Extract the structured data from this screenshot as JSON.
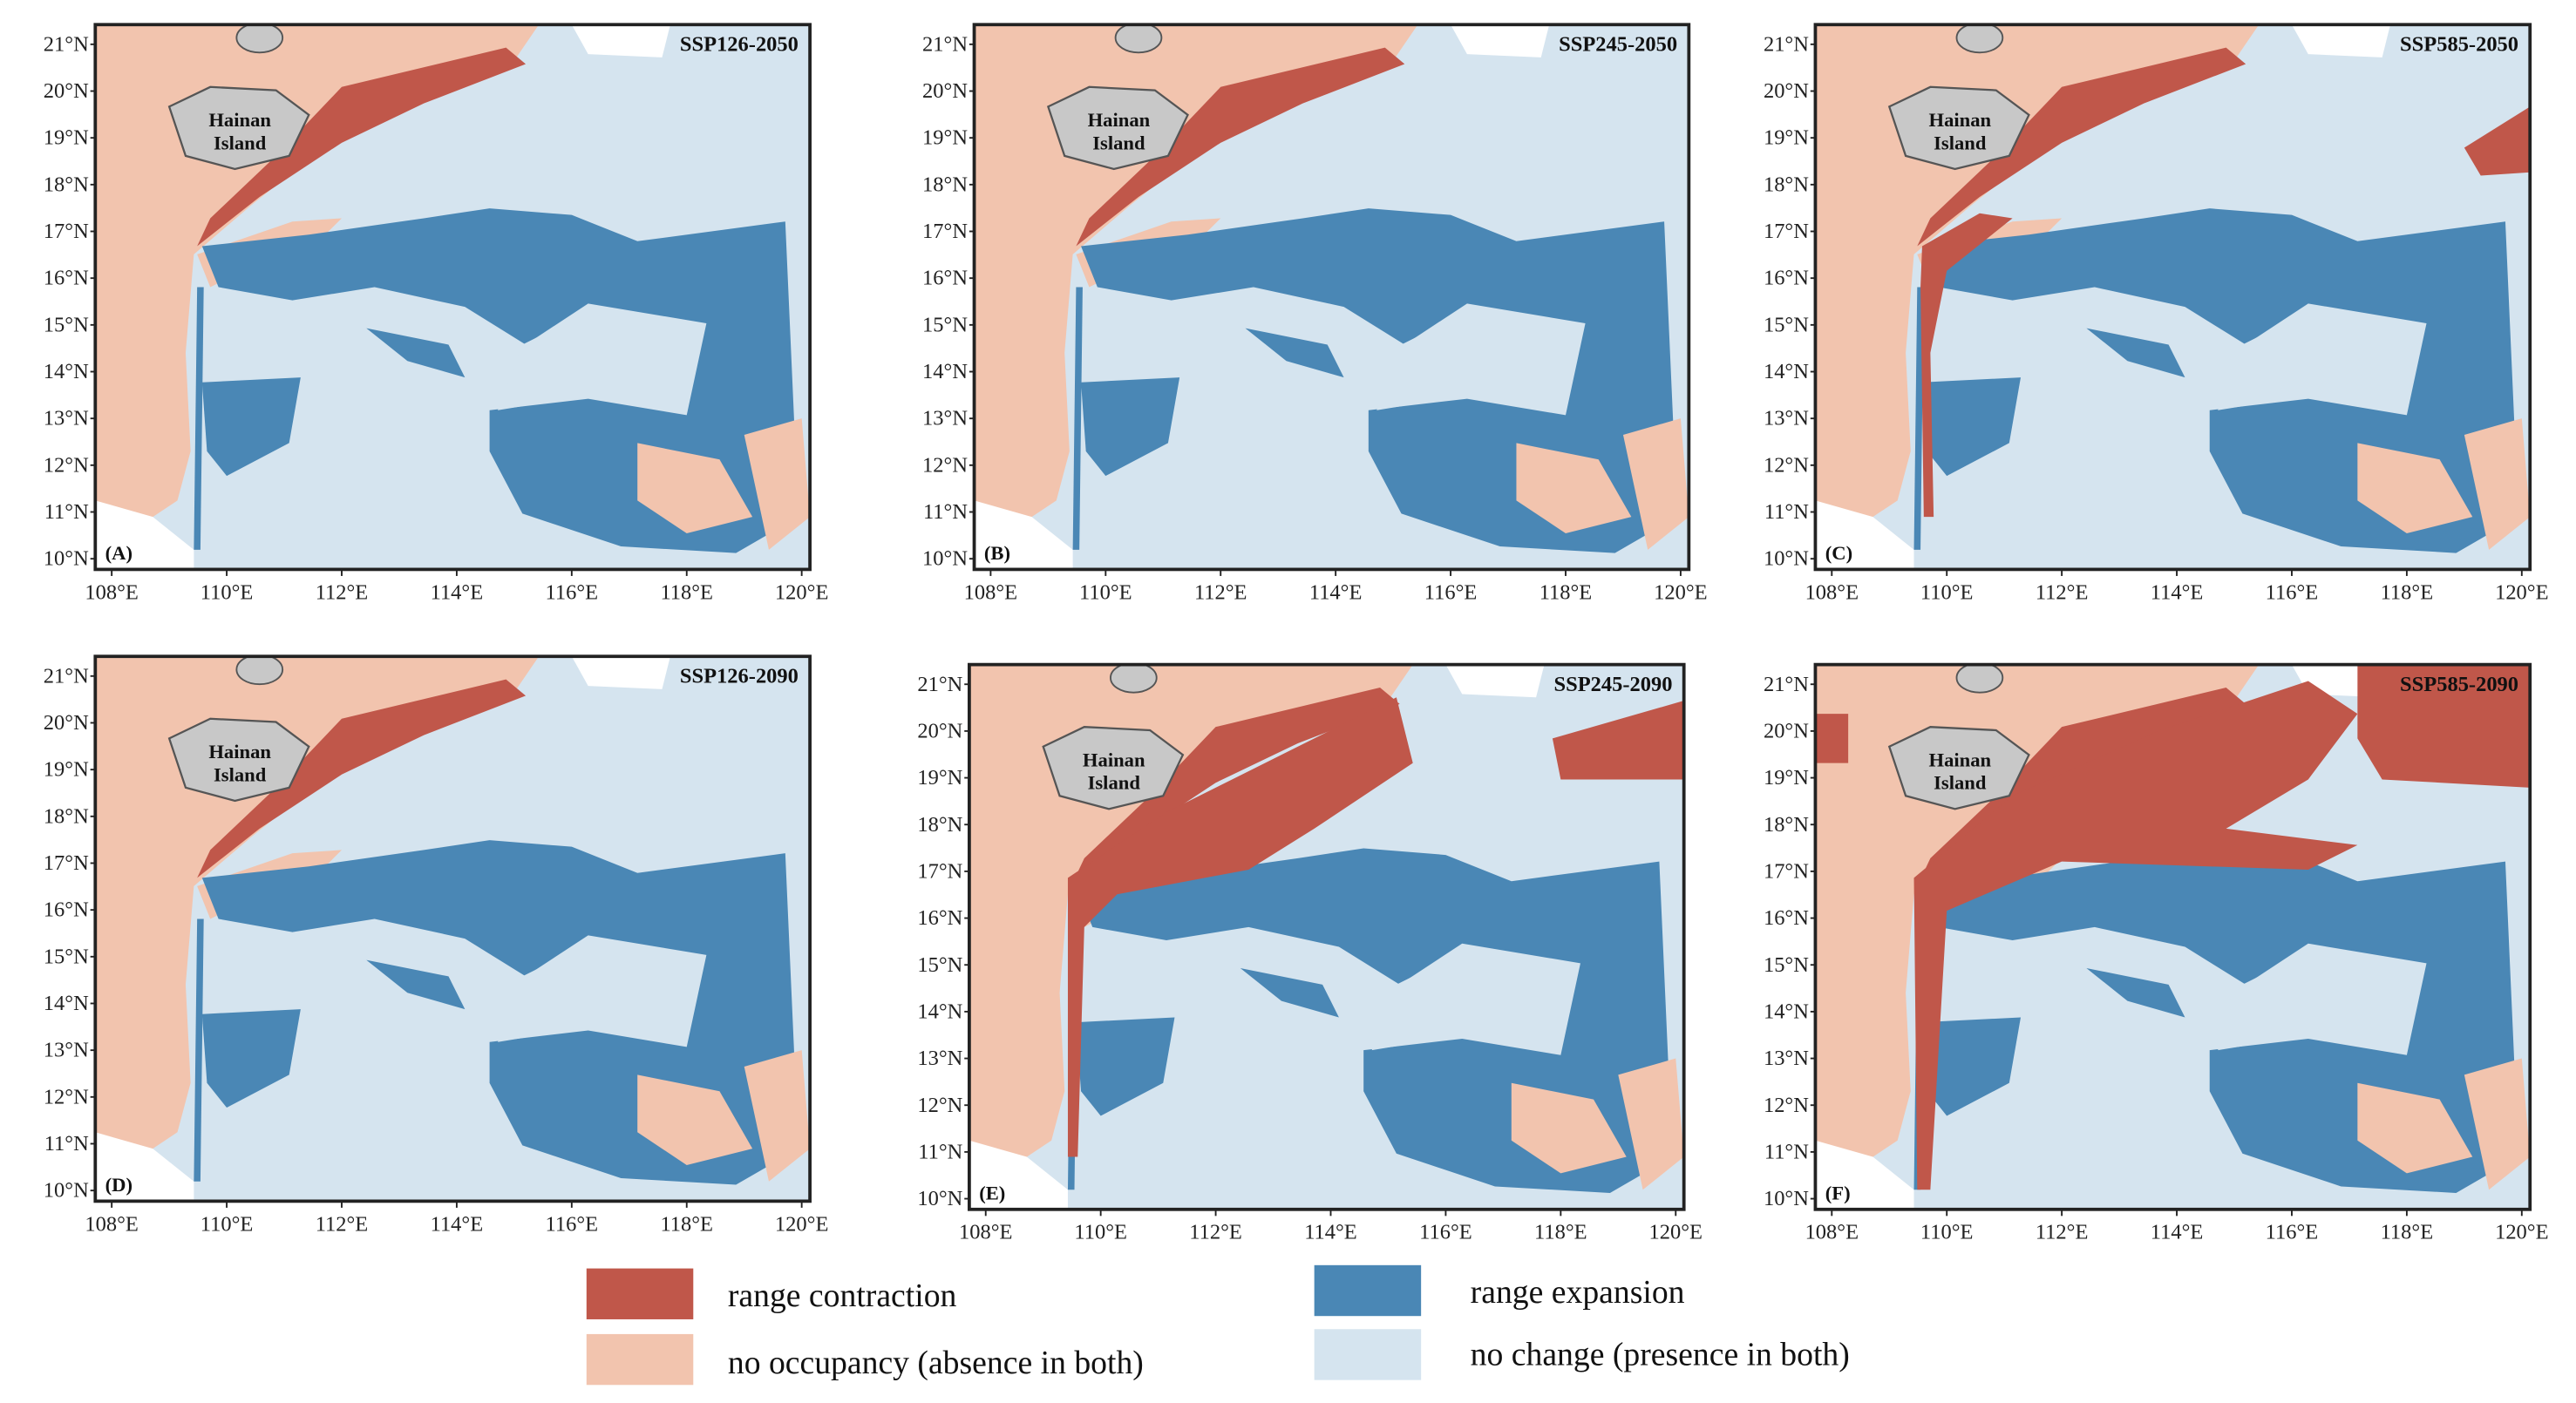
{
  "panels": [
    {
      "title": "SSP126-2050",
      "letter": "(A)"
    },
    {
      "title": "SSP245-2050",
      "letter": "(B)"
    },
    {
      "title": "SSP585-2050",
      "letter": "(C)"
    },
    {
      "title": "SSP126-2090",
      "letter": "(D)"
    },
    {
      "title": "SSP245-2090",
      "letter": "(E)"
    },
    {
      "title": "SSP585-2090",
      "letter": "(F)"
    }
  ],
  "lat_labels": [
    "21°N",
    "20°N",
    "19°N",
    "18°N",
    "17°N",
    "16°N",
    "15°N",
    "14°N",
    "13°N",
    "12°N",
    "11°N",
    "10°N"
  ],
  "lon_labels": [
    "108°E",
    "110°E",
    "112°E",
    "114°E",
    "116°E",
    "118°E",
    "120°E"
  ],
  "island_label": [
    "Hainan",
    "Island"
  ],
  "legend": [
    {
      "name": "range contraction",
      "color": "#c0574a"
    },
    {
      "name": "no occupancy (absence in both)",
      "color": "#f2c4ae"
    },
    {
      "name": "range expansion",
      "color": "#4a87b5"
    },
    {
      "name": "no change (presence in both)",
      "color": "#d5e4ef"
    }
  ]
}
